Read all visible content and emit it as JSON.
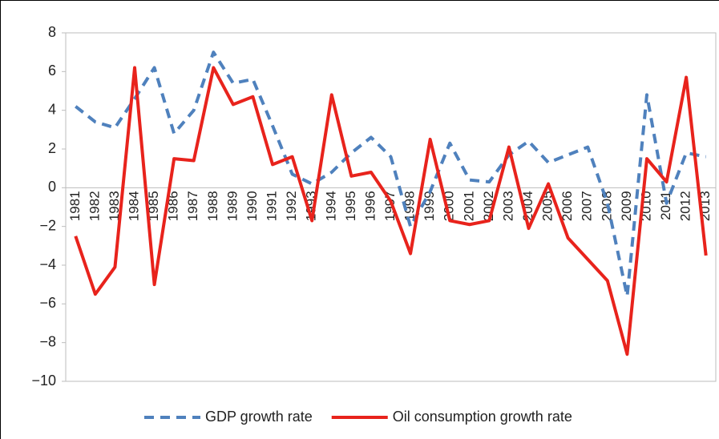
{
  "chart_data": {
    "type": "line",
    "categories": [
      "1981",
      "1982",
      "1983",
      "1984",
      "1985",
      "1986",
      "1987",
      "1988",
      "1989",
      "1990",
      "1991",
      "1992",
      "1993",
      "1994",
      "1995",
      "1996",
      "1997",
      "1998",
      "1999",
      "2000",
      "2001",
      "2002",
      "2003",
      "2004",
      "2005",
      "2006",
      "2007",
      "2008",
      "2009",
      "2010",
      "2011",
      "2012",
      "2013"
    ],
    "series": [
      {
        "name": "GDP growth rate",
        "color": "#4f81bd",
        "dashed": true,
        "values": [
          4.2,
          3.4,
          3.1,
          4.6,
          6.2,
          2.8,
          4.0,
          7.0,
          5.4,
          5.6,
          3.2,
          0.7,
          0.2,
          0.8,
          1.8,
          2.6,
          1.6,
          -2.0,
          -0.2,
          2.3,
          0.4,
          0.3,
          1.7,
          2.4,
          1.3,
          1.7,
          2.1,
          -0.8,
          -5.6,
          4.8,
          -0.8,
          1.8,
          1.6
        ]
      },
      {
        "name": "Oil consumption growth rate",
        "color": "#e8231c",
        "dashed": false,
        "values": [
          -2.5,
          -5.5,
          -4.1,
          6.2,
          -5.0,
          1.5,
          1.4,
          6.2,
          4.3,
          4.7,
          1.2,
          1.6,
          -1.7,
          4.8,
          0.6,
          0.8,
          -0.7,
          -3.4,
          2.5,
          -1.7,
          -1.9,
          -1.7,
          2.1,
          -2.1,
          0.2,
          -2.6,
          -3.7,
          -4.8,
          -8.6,
          1.5,
          0.3,
          5.7,
          -3.5
        ]
      }
    ],
    "ylim": [
      -10,
      8
    ],
    "yticks": [
      {
        "value": -10,
        "label": "−10"
      },
      {
        "value": -8,
        "label": "−8"
      },
      {
        "value": -6,
        "label": "−6"
      },
      {
        "value": -4,
        "label": "−4"
      },
      {
        "value": -2,
        "label": "−2"
      },
      0,
      2,
      4,
      6,
      8
    ],
    "grid": false,
    "legend": "bottom"
  }
}
